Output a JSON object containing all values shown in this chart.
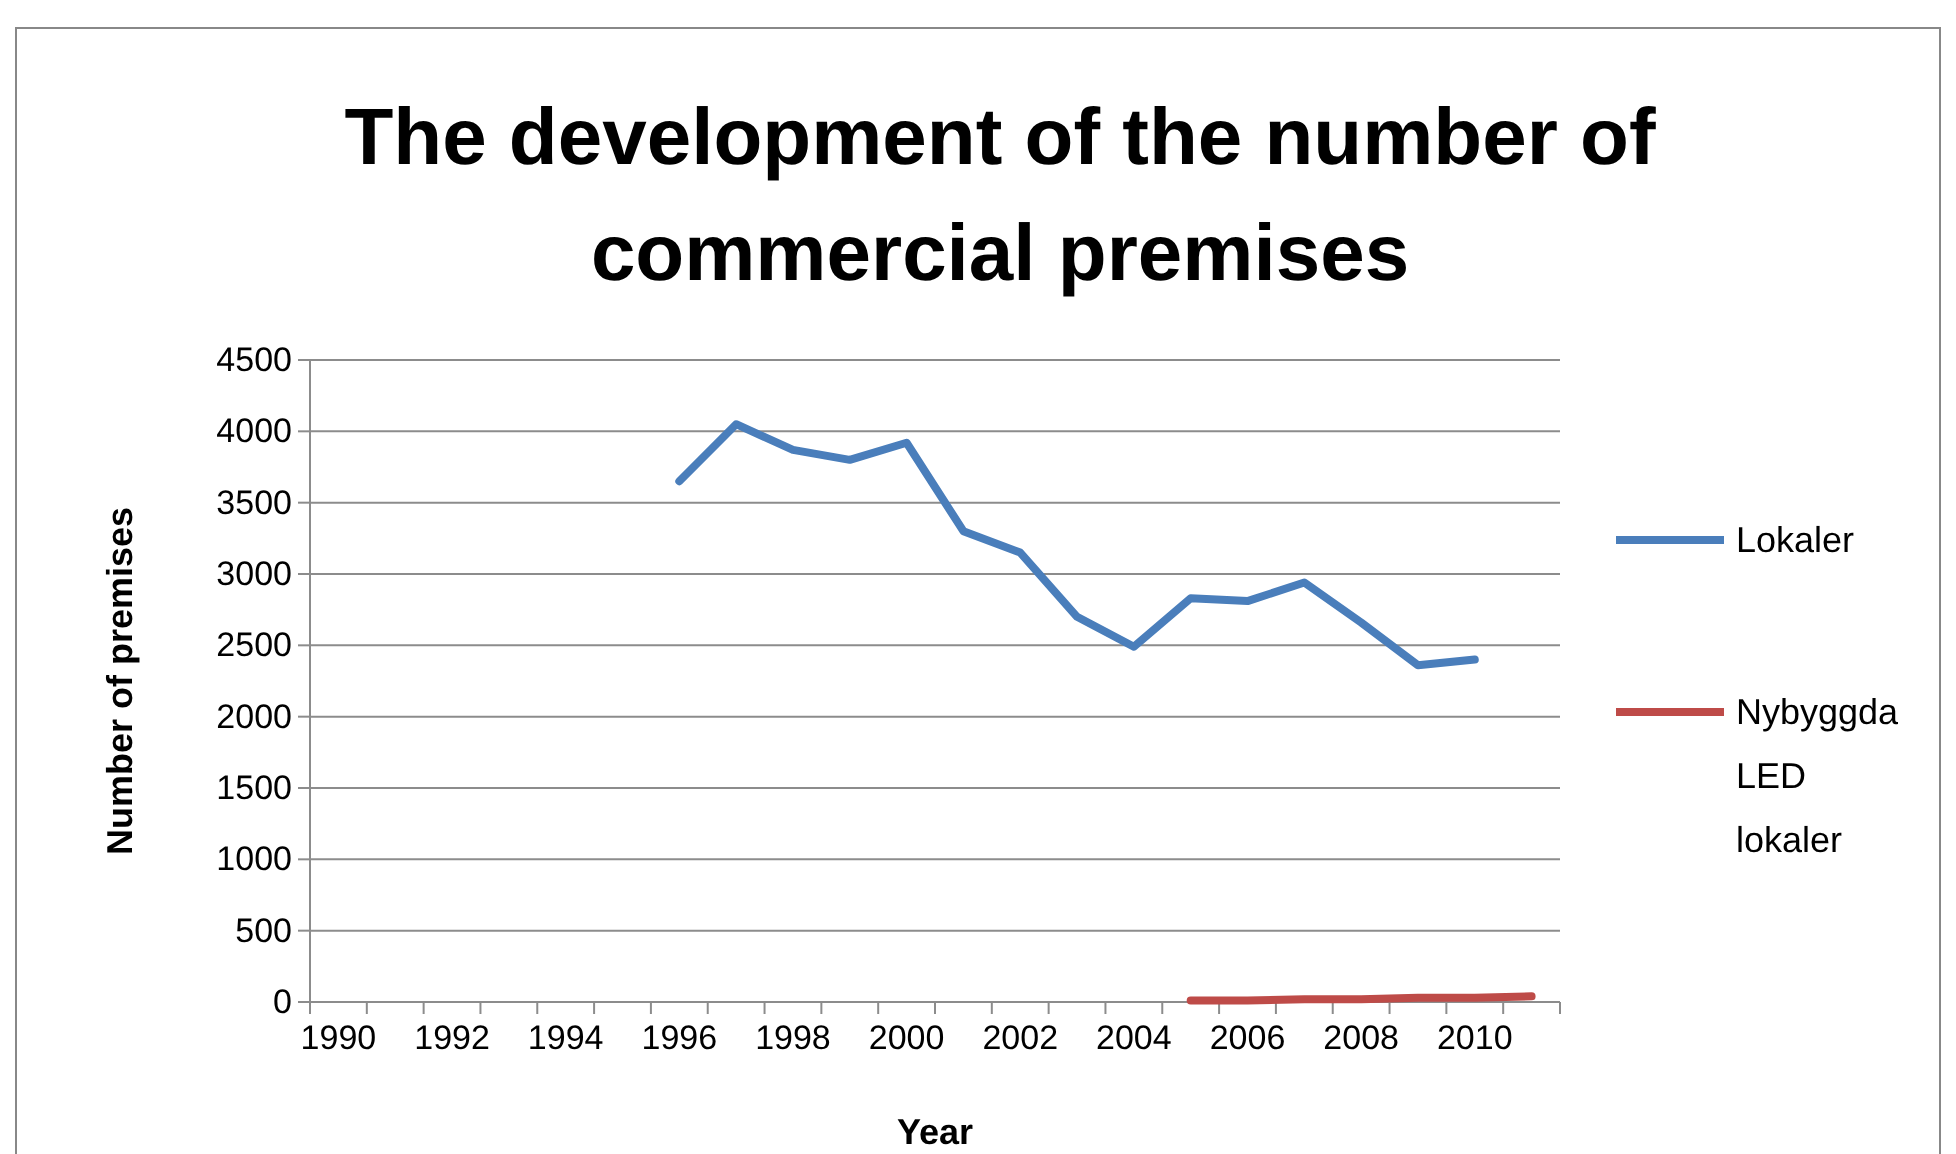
{
  "chart_data": {
    "type": "line",
    "title": "The development of the number of commercial premises",
    "xlabel": "Year",
    "ylabel": "Number of premises",
    "categories": [
      "1990",
      null,
      "1992",
      null,
      "1994",
      null,
      "1996",
      null,
      "1998",
      null,
      "2000",
      null,
      "2002",
      null,
      "2004",
      null,
      "2006",
      null,
      "2008",
      null,
      "2010",
      null
    ],
    "series": [
      {
        "name": "Lokaler",
        "color": "#4a7ebb",
        "values": [
          null,
          null,
          null,
          null,
          null,
          null,
          3650,
          4050,
          3870,
          3800,
          3920,
          3300,
          3150,
          2700,
          2490,
          2830,
          2810,
          2940,
          2660,
          2360,
          2400,
          null
        ]
      },
      {
        "name": "Nybyggda LED lokaler",
        "color": "#be4b48",
        "values": [
          null,
          null,
          null,
          null,
          null,
          null,
          null,
          null,
          null,
          null,
          null,
          null,
          null,
          null,
          null,
          10,
          10,
          20,
          20,
          30,
          30,
          40
        ]
      }
    ],
    "ylim": [
      0,
      4500
    ],
    "yticks": [
      0,
      500,
      1000,
      1500,
      2000,
      2500,
      3000,
      3500,
      4000,
      4500
    ],
    "grid": "y",
    "legend": "right",
    "marker": "none",
    "line_style": "solid"
  }
}
